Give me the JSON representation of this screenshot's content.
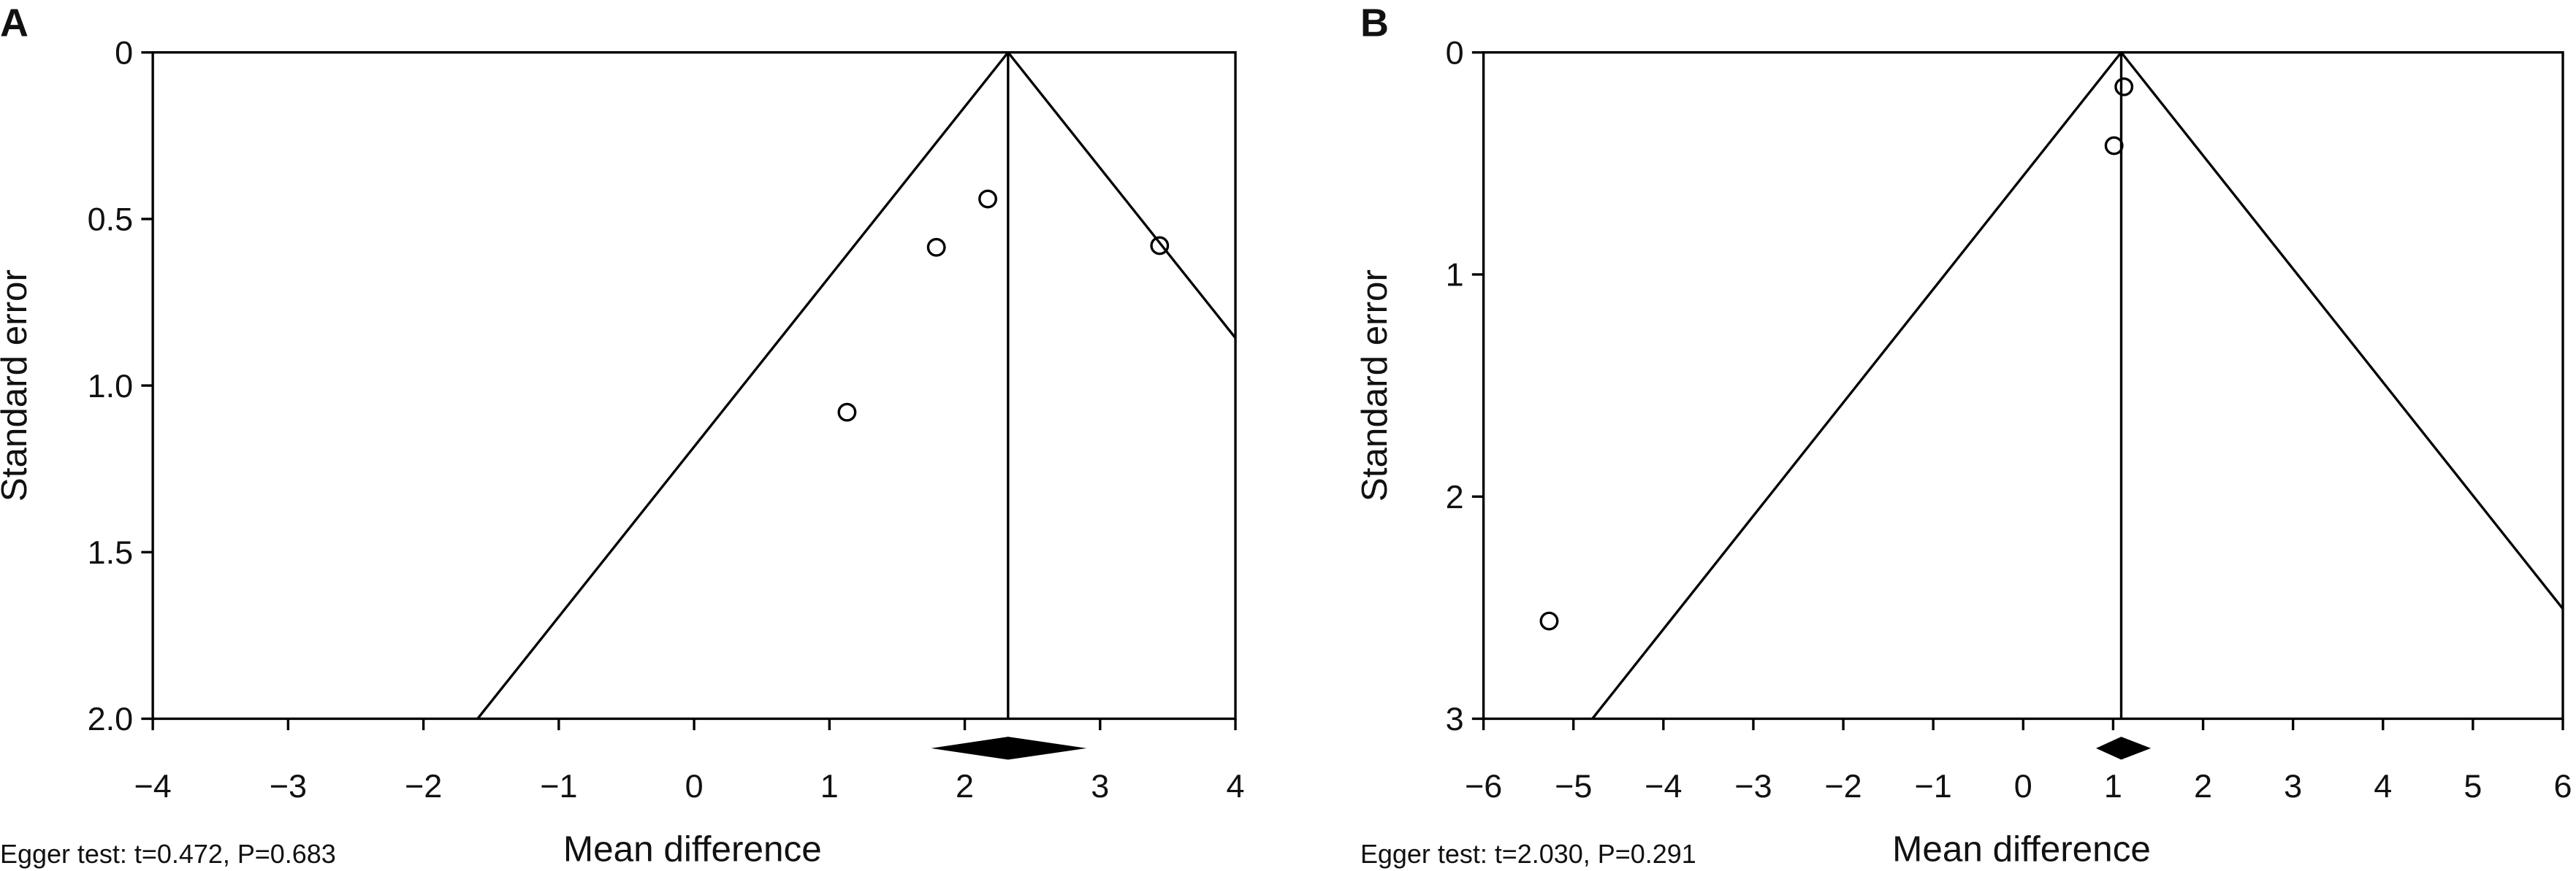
{
  "chart_data": [
    {
      "type": "funnel",
      "panel": "A",
      "ylabel": "Standard error",
      "xlabel": "Mean difference",
      "note": "Egger test: t=0.472, P=0.683",
      "x": [
        3.44,
        2.17,
        1.79,
        1.13
      ],
      "values": [
        0.58,
        0.44,
        0.585,
        1.08
      ],
      "pooled": 2.32,
      "pooled_ci": [
        1.75,
        2.9
      ],
      "xlim": [
        -4,
        4
      ],
      "xticks": [
        {
          "value": -4,
          "label": "−4"
        },
        {
          "value": -3,
          "label": "−3"
        },
        {
          "value": -2,
          "label": "−2"
        },
        {
          "value": -1,
          "label": "−1"
        },
        0,
        1,
        2,
        3,
        4
      ],
      "ylim": [
        2,
        0
      ],
      "yticks": [
        0,
        0.5,
        {
          "value": 1,
          "label": "1.0"
        },
        1.5,
        {
          "value": 2,
          "label": "2.0"
        }
      ],
      "color": "#000000"
    },
    {
      "type": "funnel",
      "panel": "B",
      "ylabel": "Standard error",
      "xlabel": "Mean difference",
      "note": "Egger test: t=2.030, P=0.291",
      "x": [
        1.12,
        1.01,
        -5.27
      ],
      "values": [
        0.155,
        0.42,
        2.56
      ],
      "pooled": 1.09,
      "pooled_ci": [
        0.81,
        1.42
      ],
      "xlim": [
        -6,
        6
      ],
      "xticks": [
        {
          "value": -6,
          "label": "−6"
        },
        {
          "value": -5,
          "label": "−5"
        },
        {
          "value": -4,
          "label": "−4"
        },
        {
          "value": -3,
          "label": "−3"
        },
        {
          "value": -2,
          "label": "−2"
        },
        {
          "value": -1,
          "label": "−1"
        },
        0,
        1,
        2,
        3,
        4,
        5,
        6
      ],
      "ylim": [
        3,
        0
      ],
      "yticks": [
        0,
        1,
        2,
        3
      ],
      "color": "#000000"
    }
  ]
}
